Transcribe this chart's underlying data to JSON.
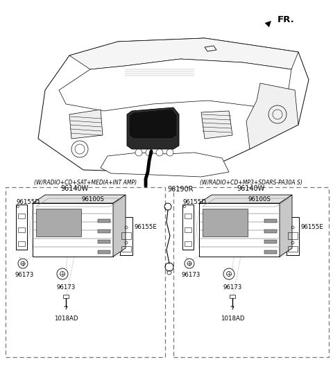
{
  "bg_color": "#ffffff",
  "fr_label": "FR.",
  "box1_label": "(W/RADIO+CD+SAT+MEDIA+INT AMP)",
  "box2_label": "(W/RADIO+CD+MP3+SDARS-PA30A S)",
  "box1_part": "96140W",
  "box2_part": "96140W",
  "antenna_part": "96190R",
  "parts_left": {
    "bracket_left": "96155D",
    "radio": "96100S",
    "bracket_right": "96155E",
    "bolt1": "96173",
    "bolt2": "96173",
    "screw": "1018AD"
  },
  "parts_right": {
    "bracket_left": "96155D",
    "radio": "96100S",
    "bracket_right": "96155E",
    "bolt1": "96173",
    "bolt2": "96173",
    "screw": "1018AD"
  },
  "text_color": "#000000",
  "line_color": "#000000",
  "border_color": "#888888",
  "font_size_label": 6.2,
  "font_size_part": 7.0,
  "font_size_fr": 9.5
}
